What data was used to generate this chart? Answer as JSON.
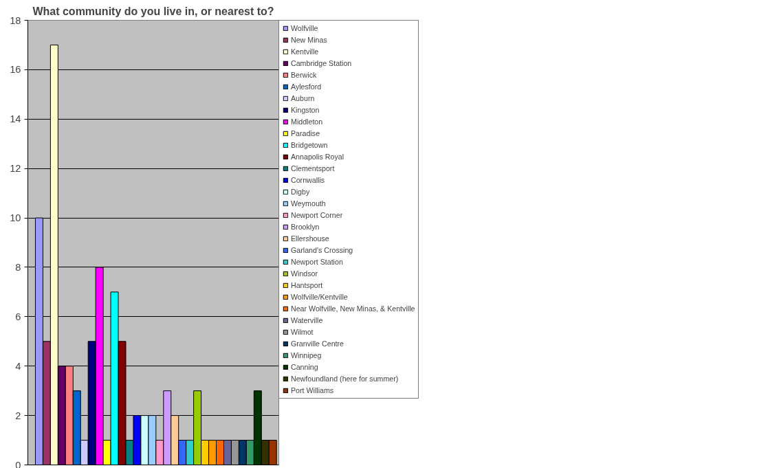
{
  "chart_data": {
    "type": "bar",
    "title": "What community do you live in, or nearest to?",
    "categories": [
      null
    ],
    "series": [
      {
        "name": "Wolfville",
        "color": "#9999ff",
        "values": [
          10
        ]
      },
      {
        "name": "New Minas",
        "color": "#993366",
        "values": [
          5
        ]
      },
      {
        "name": "Kentville",
        "color": "#ffffcc",
        "values": [
          17
        ]
      },
      {
        "name": "Cambridge Station",
        "color": "#660066",
        "values": [
          4
        ]
      },
      {
        "name": "Berwick",
        "color": "#ff8080",
        "values": [
          4
        ]
      },
      {
        "name": "Aylesford",
        "color": "#0066cc",
        "values": [
          3
        ]
      },
      {
        "name": "Auburn",
        "color": "#ccccff",
        "values": [
          1
        ]
      },
      {
        "name": "Kingston",
        "color": "#000080",
        "values": [
          5
        ]
      },
      {
        "name": "Middleton",
        "color": "#ff00ff",
        "values": [
          8
        ]
      },
      {
        "name": "Paradise",
        "color": "#ffff00",
        "values": [
          1
        ]
      },
      {
        "name": "Bridgetown",
        "color": "#00ffff",
        "values": [
          7
        ]
      },
      {
        "name": "Annapolis Royal",
        "color": "#800000",
        "values": [
          5
        ]
      },
      {
        "name": "Clementsport",
        "color": "#008080",
        "values": [
          1
        ]
      },
      {
        "name": "Cornwallis",
        "color": "#0000ff",
        "values": [
          2
        ]
      },
      {
        "name": "Digby",
        "color": "#ccffff",
        "values": [
          2
        ]
      },
      {
        "name": "Weymouth",
        "color": "#99ccff",
        "values": [
          2
        ]
      },
      {
        "name": "Newport Corner",
        "color": "#ff99cc",
        "values": [
          1
        ]
      },
      {
        "name": "Brooklyn",
        "color": "#cc99ff",
        "values": [
          3
        ]
      },
      {
        "name": "Ellershouse",
        "color": "#ffcc99",
        "values": [
          2
        ]
      },
      {
        "name": "Garland's Crossing",
        "color": "#3366ff",
        "values": [
          1
        ]
      },
      {
        "name": "Newport Station",
        "color": "#33cccc",
        "values": [
          1
        ]
      },
      {
        "name": "Windsor",
        "color": "#99cc00",
        "values": [
          3
        ]
      },
      {
        "name": "Hantsport",
        "color": "#ffcc00",
        "values": [
          1
        ]
      },
      {
        "name": "Wolfville/Kentville",
        "color": "#ff9900",
        "values": [
          1
        ]
      },
      {
        "name": "Near Wolfville, New Minas, & Kentville",
        "color": "#ff6600",
        "values": [
          1
        ]
      },
      {
        "name": "Waterville",
        "color": "#666699",
        "values": [
          1
        ]
      },
      {
        "name": "Wilmot",
        "color": "#969696",
        "values": [
          1
        ]
      },
      {
        "name": "Granville Centre",
        "color": "#003366",
        "values": [
          1
        ]
      },
      {
        "name": "Winnipeg",
        "color": "#339966",
        "values": [
          1
        ]
      },
      {
        "name": "Canning",
        "color": "#003300",
        "values": [
          3
        ]
      },
      {
        "name": "Newfoundland (here for summer)",
        "color": "#333300",
        "values": [
          1
        ]
      },
      {
        "name": "Port Williams",
        "color": "#993300",
        "values": [
          1
        ]
      }
    ],
    "ylim": [
      0,
      18
    ],
    "yticks": [
      0,
      2,
      4,
      6,
      8,
      10,
      12,
      14,
      16,
      18
    ],
    "grid": "y",
    "legend": "right",
    "tick_labels": "y"
  }
}
